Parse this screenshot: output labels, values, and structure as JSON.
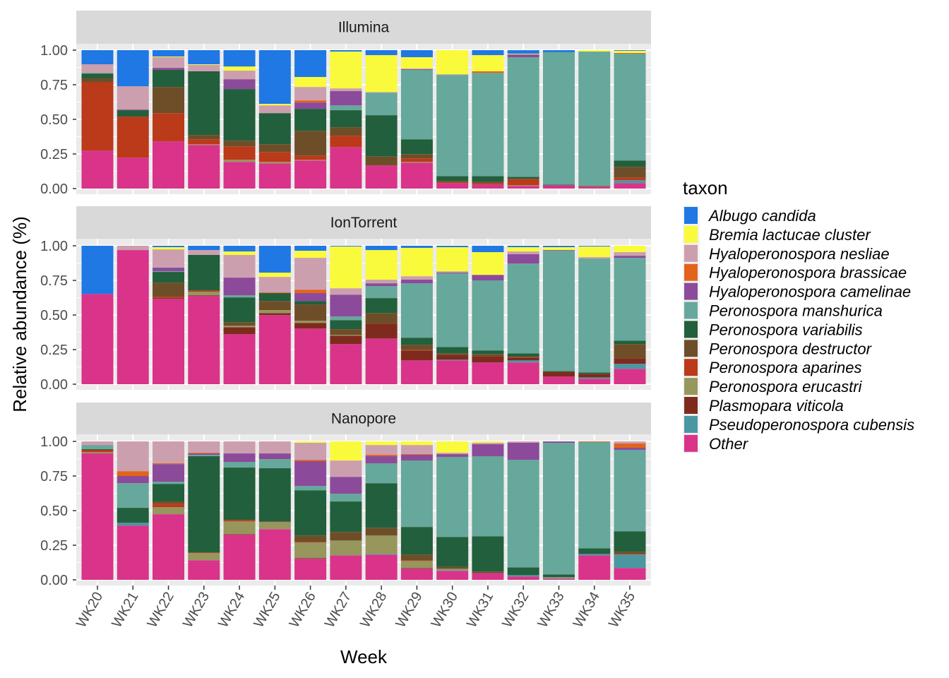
{
  "chart_data": {
    "type": "bar",
    "stacked": true,
    "xlabel": "Week",
    "ylabel": "Relative abundance (%)",
    "ylim": [
      0,
      1
    ],
    "yticks": [
      "0.00",
      "0.25",
      "0.50",
      "0.75",
      "1.00"
    ],
    "grid": true,
    "legend_title": "taxon",
    "legend_position": "right",
    "categories": [
      "WK20",
      "WK21",
      "WK22",
      "WK23",
      "WK24",
      "WK25",
      "WK26",
      "WK27",
      "WK28",
      "WK29",
      "WK30",
      "WK31",
      "WK32",
      "WK33",
      "WK34",
      "WK35"
    ],
    "taxa": [
      {
        "name": "Albugo candida",
        "color": "#1f78e3"
      },
      {
        "name": "Bremia lactucae cluster",
        "color": "#fafa3c"
      },
      {
        "name": "Hyaloperonospora nesliae",
        "color": "#cc9fae"
      },
      {
        "name": "Hyaloperonospora brassicae",
        "color": "#e2641c"
      },
      {
        "name": "Hyaloperonospora camelinae",
        "color": "#8c4a9b"
      },
      {
        "name": "Peronospora manshurica",
        "color": "#66a89b"
      },
      {
        "name": "Peronospora variabilis",
        "color": "#225f3c"
      },
      {
        "name": "Peronospora destructor",
        "color": "#6e4e28"
      },
      {
        "name": "Peronospora aparines",
        "color": "#ba3a1a"
      },
      {
        "name": "Peronospora erucastri",
        "color": "#96965d"
      },
      {
        "name": "Plasmopara viticola",
        "color": "#7e2b1e"
      },
      {
        "name": "Pseudoperonospora cubensis",
        "color": "#4a97a2"
      },
      {
        "name": "Other",
        "color": "#d9338a"
      }
    ],
    "facets": [
      {
        "name": "Illumina",
        "values": [
          [
            0.102,
            0,
            0.062,
            0,
            0,
            0.005,
            0.035,
            0.028,
            0.494,
            0,
            0,
            0,
            0.274
          ],
          [
            0.261,
            0,
            0.168,
            0,
            0.005,
            0,
            0.046,
            0,
            0.297,
            0,
            0,
            0,
            0.223
          ],
          [
            0.046,
            0.005,
            0.077,
            0,
            0.015,
            0,
            0.123,
            0.189,
            0.204,
            0,
            0,
            0,
            0.341
          ],
          [
            0.102,
            0.005,
            0.046,
            0,
            0,
            0,
            0.46,
            0.031,
            0.036,
            0.005,
            0,
            0,
            0.315
          ],
          [
            0.118,
            0.03,
            0.062,
            0,
            0.071,
            0,
            0.373,
            0.041,
            0.097,
            0.015,
            0,
            0,
            0.193
          ],
          [
            0.388,
            0.011,
            0.056,
            0,
            0,
            0,
            0.225,
            0.056,
            0.071,
            0.011,
            0,
            0,
            0.182
          ],
          [
            0.194,
            0.072,
            0.097,
            0.015,
            0.046,
            0,
            0.159,
            0.178,
            0.031,
            0.005,
            0,
            0,
            0.203
          ],
          [
            0.01,
            0.266,
            0.02,
            0,
            0.103,
            0.035,
            0.123,
            0.061,
            0.082,
            0,
            0,
            0,
            0.3
          ],
          [
            0.036,
            0.266,
            0.005,
            0,
            0,
            0.163,
            0.297,
            0.066,
            0,
            0,
            0,
            0,
            0.167
          ],
          [
            0.051,
            0.082,
            0.005,
            0,
            0.005,
            0.501,
            0.107,
            0.031,
            0.025,
            0.006,
            0,
            0,
            0.187
          ],
          [
            0,
            0.174,
            0.005,
            0,
            0,
            0.731,
            0.035,
            0.011,
            0.005,
            0,
            0,
            0,
            0.039
          ],
          [
            0.036,
            0.117,
            0,
            0.011,
            0,
            0.746,
            0.041,
            0.01,
            0.01,
            0,
            0,
            0,
            0.029
          ],
          [
            0.026,
            0.005,
            0,
            0,
            0.02,
            0.864,
            0.015,
            0,
            0.046,
            0.005,
            0,
            0,
            0.019
          ],
          [
            0.015,
            0,
            0,
            0,
            0,
            0.956,
            0.005,
            0,
            0,
            0,
            0,
            0,
            0.024
          ],
          [
            0,
            0.01,
            0,
            0,
            0,
            0.971,
            0,
            0.005,
            0,
            0,
            0,
            0,
            0.014
          ],
          [
            0.005,
            0.015,
            0,
            0.006,
            0,
            0.771,
            0.046,
            0.077,
            0.02,
            0,
            0,
            0.021,
            0.039
          ]
        ]
      },
      {
        "name": "IonTorrent",
        "values": [
          [
            0.348,
            0,
            0,
            0,
            0,
            0,
            0,
            0,
            0,
            0,
            0,
            0,
            0.652
          ],
          [
            0,
            0,
            0.031,
            0,
            0,
            0,
            0,
            0,
            0,
            0,
            0,
            0,
            0.969
          ],
          [
            0.01,
            0.016,
            0.132,
            0,
            0.026,
            0.005,
            0.077,
            0.102,
            0.01,
            0,
            0.005,
            0,
            0.617
          ],
          [
            0.031,
            0,
            0.035,
            0,
            0,
            0,
            0.256,
            0,
            0.01,
            0.026,
            0.005,
            0,
            0.637
          ],
          [
            0.041,
            0.025,
            0.164,
            0,
            0.128,
            0.015,
            0.179,
            0.026,
            0,
            0.01,
            0.051,
            0,
            0.361
          ],
          [
            0.194,
            0.031,
            0.112,
            0.005,
            0,
            0,
            0.057,
            0.066,
            0,
            0.021,
            0.015,
            0,
            0.499
          ],
          [
            0.036,
            0.051,
            0.23,
            0.025,
            0.057,
            0,
            0.025,
            0.118,
            0,
            0.015,
            0.041,
            0,
            0.402
          ],
          [
            0.005,
            0.302,
            0.046,
            0,
            0.158,
            0.026,
            0.066,
            0.041,
            0,
            0.005,
            0.061,
            0,
            0.29
          ],
          [
            0.031,
            0.214,
            0.026,
            0,
            0.02,
            0.087,
            0.108,
            0.076,
            0,
            0,
            0.108,
            0,
            0.33
          ],
          [
            0.015,
            0.205,
            0.025,
            0,
            0.026,
            0.393,
            0.052,
            0.035,
            0.005,
            0,
            0.072,
            0,
            0.172
          ],
          [
            0.01,
            0.174,
            0.01,
            0,
            0.005,
            0.532,
            0.046,
            0.01,
            0,
            0,
            0.036,
            0.005,
            0.172
          ],
          [
            0.046,
            0.164,
            0,
            0,
            0.04,
            0.506,
            0.026,
            0.015,
            0,
            0,
            0.046,
            0,
            0.157
          ],
          [
            0.01,
            0.031,
            0.02,
            0,
            0.067,
            0.649,
            0.025,
            0,
            0.005,
            0,
            0.021,
            0.015,
            0.157
          ],
          [
            0.01,
            0.021,
            0,
            0,
            0.005,
            0.869,
            0.005,
            0,
            0,
            0,
            0.035,
            0,
            0.055
          ],
          [
            0.005,
            0.077,
            0.01,
            0,
            0,
            0.823,
            0.01,
            0,
            0,
            0,
            0.026,
            0.01,
            0.039
          ],
          [
            0,
            0.046,
            0.026,
            0,
            0.015,
            0.598,
            0.025,
            0.103,
            0,
            0,
            0.04,
            0.036,
            0.111
          ]
        ]
      },
      {
        "name": "Nanopore",
        "values": [
          [
            0,
            0,
            0.026,
            0,
            0,
            0.03,
            0.005,
            0,
            0.016,
            0.01,
            0,
            0,
            0.913
          ],
          [
            0,
            0,
            0.215,
            0.035,
            0.052,
            0.178,
            0.108,
            0,
            0,
            0,
            0,
            0.02,
            0.392
          ],
          [
            0,
            0,
            0.158,
            0.006,
            0.127,
            0.016,
            0.127,
            0.016,
            0.025,
            0.051,
            0,
            0,
            0.474
          ],
          [
            0,
            0,
            0.082,
            0.005,
            0.01,
            0.01,
            0.695,
            0,
            0.005,
            0.052,
            0,
            0,
            0.141
          ],
          [
            0,
            0,
            0.087,
            0,
            0.061,
            0.041,
            0.378,
            0,
            0.011,
            0.092,
            0.005,
            0,
            0.325
          ],
          [
            0,
            0,
            0.087,
            0,
            0.041,
            0.066,
            0.384,
            0.005,
            0,
            0.051,
            0,
            0,
            0.366
          ],
          [
            0,
            0.01,
            0.123,
            0.01,
            0.179,
            0.031,
            0.327,
            0.046,
            0.005,
            0.112,
            0.005,
            0,
            0.152
          ],
          [
            0,
            0.138,
            0.118,
            0,
            0.122,
            0.056,
            0.22,
            0.062,
            0,
            0.107,
            0,
            0,
            0.177
          ],
          [
            0,
            0.026,
            0.071,
            0.01,
            0.051,
            0.144,
            0.322,
            0.056,
            0,
            0.133,
            0,
            0.005,
            0.182
          ],
          [
            0,
            0.026,
            0.066,
            0.005,
            0.041,
            0.48,
            0.2,
            0.041,
            0.005,
            0.051,
            0.005,
            0,
            0.08
          ],
          [
            0,
            0.082,
            0.01,
            0,
            0.02,
            0.578,
            0.215,
            0.015,
            0,
            0.01,
            0,
            0.005,
            0.065
          ],
          [
            0,
            0.01,
            0.01,
            0,
            0.087,
            0.578,
            0.255,
            0.011,
            0,
            0,
            0,
            0,
            0.049
          ],
          [
            0,
            0,
            0.01,
            0,
            0.123,
            0.777,
            0.056,
            0,
            0,
            0,
            0,
            0.01,
            0.024
          ],
          [
            0,
            0,
            0,
            0,
            0.01,
            0.951,
            0.02,
            0,
            0,
            0.005,
            0,
            0.005,
            0.009
          ],
          [
            0,
            0,
            0,
            0.005,
            0,
            0.767,
            0.041,
            0,
            0,
            0,
            0,
            0.01,
            0.177
          ],
          [
            0,
            0,
            0.015,
            0.031,
            0.015,
            0.588,
            0.148,
            0.016,
            0.005,
            0,
            0,
            0.097,
            0.085
          ]
        ]
      }
    ]
  }
}
